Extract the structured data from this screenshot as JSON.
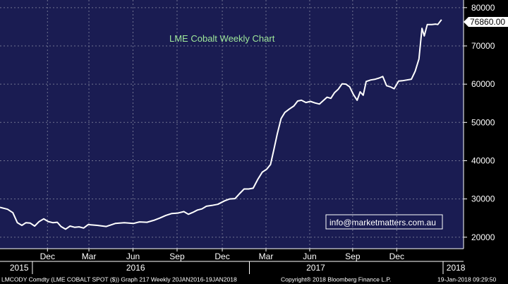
{
  "chart_data": {
    "type": "line",
    "title": "LME Cobalt Weekly Chart",
    "ylim": [
      17000,
      82000
    ],
    "y_ticks": [
      20000,
      30000,
      40000,
      50000,
      60000,
      70000,
      80000
    ],
    "last_value_label": "76860.00",
    "x_month_ticks": [
      {
        "label": "Dec",
        "t": 0.126
      },
      {
        "label": "Mar",
        "t": 0.236
      },
      {
        "label": "Jun",
        "t": 0.353
      },
      {
        "label": "Sep",
        "t": 0.47
      },
      {
        "label": "Dec",
        "t": 0.59
      },
      {
        "label": "Mar",
        "t": 0.706
      },
      {
        "label": "Jun",
        "t": 0.822
      },
      {
        "label": "Sep",
        "t": 0.936
      },
      {
        "label": "Dec",
        "t": 1.053
      }
    ],
    "year_labels": [
      {
        "label": "2015",
        "t": 0.051
      },
      {
        "label": "2016",
        "t": 0.36
      },
      {
        "label": "2017",
        "t": 0.838
      },
      {
        "label": "2018",
        "t": 1.21
      }
    ],
    "year_separators": [
      0.086,
      0.662,
      1.176
    ],
    "series": [
      {
        "color": "#ffffff",
        "points": [
          [
            0.0,
            27800
          ],
          [
            0.02,
            27300
          ],
          [
            0.034,
            26400
          ],
          [
            0.046,
            23800
          ],
          [
            0.058,
            23100
          ],
          [
            0.069,
            23800
          ],
          [
            0.08,
            23700
          ],
          [
            0.092,
            22900
          ],
          [
            0.104,
            24100
          ],
          [
            0.116,
            24800
          ],
          [
            0.128,
            24100
          ],
          [
            0.14,
            23800
          ],
          [
            0.152,
            23900
          ],
          [
            0.162,
            22800
          ],
          [
            0.174,
            22100
          ],
          [
            0.186,
            22900
          ],
          [
            0.198,
            22600
          ],
          [
            0.21,
            22700
          ],
          [
            0.222,
            22400
          ],
          [
            0.234,
            23300
          ],
          [
            0.258,
            23100
          ],
          [
            0.282,
            22800
          ],
          [
            0.306,
            23600
          ],
          [
            0.33,
            23800
          ],
          [
            0.354,
            23600
          ],
          [
            0.37,
            24000
          ],
          [
            0.39,
            23900
          ],
          [
            0.408,
            24400
          ],
          [
            0.424,
            25000
          ],
          [
            0.44,
            25700
          ],
          [
            0.456,
            26200
          ],
          [
            0.472,
            26300
          ],
          [
            0.488,
            26700
          ],
          [
            0.5,
            26000
          ],
          [
            0.512,
            26500
          ],
          [
            0.524,
            27100
          ],
          [
            0.536,
            27400
          ],
          [
            0.548,
            28100
          ],
          [
            0.562,
            28300
          ],
          [
            0.578,
            28600
          ],
          [
            0.596,
            29500
          ],
          [
            0.61,
            30000
          ],
          [
            0.624,
            30100
          ],
          [
            0.636,
            31400
          ],
          [
            0.648,
            32600
          ],
          [
            0.66,
            32600
          ],
          [
            0.672,
            32800
          ],
          [
            0.684,
            35100
          ],
          [
            0.696,
            37000
          ],
          [
            0.708,
            37800
          ],
          [
            0.718,
            39000
          ],
          [
            0.726,
            42500
          ],
          [
            0.736,
            47000
          ],
          [
            0.746,
            51000
          ],
          [
            0.756,
            52600
          ],
          [
            0.768,
            53500
          ],
          [
            0.78,
            54300
          ],
          [
            0.79,
            55600
          ],
          [
            0.8,
            55800
          ],
          [
            0.812,
            55200
          ],
          [
            0.824,
            55500
          ],
          [
            0.836,
            55100
          ],
          [
            0.848,
            54800
          ],
          [
            0.858,
            55700
          ],
          [
            0.868,
            56600
          ],
          [
            0.878,
            56300
          ],
          [
            0.888,
            57800
          ],
          [
            0.898,
            58700
          ],
          [
            0.908,
            60100
          ],
          [
            0.918,
            60000
          ],
          [
            0.928,
            59300
          ],
          [
            0.938,
            57300
          ],
          [
            0.948,
            55800
          ],
          [
            0.956,
            58000
          ],
          [
            0.964,
            57100
          ],
          [
            0.972,
            60700
          ],
          [
            0.984,
            61100
          ],
          [
            0.996,
            61300
          ],
          [
            1.006,
            61600
          ],
          [
            1.016,
            62000
          ],
          [
            1.026,
            59600
          ],
          [
            1.036,
            59300
          ],
          [
            1.046,
            58800
          ],
          [
            1.058,
            60800
          ],
          [
            1.068,
            60900
          ],
          [
            1.08,
            61100
          ],
          [
            1.092,
            61300
          ],
          [
            1.102,
            63400
          ],
          [
            1.112,
            66600
          ],
          [
            1.12,
            74600
          ],
          [
            1.126,
            72600
          ],
          [
            1.134,
            75600
          ],
          [
            1.146,
            75600
          ],
          [
            1.156,
            75700
          ],
          [
            1.162,
            75600
          ],
          [
            1.172,
            76860
          ]
        ]
      }
    ]
  },
  "watermark": "info@marketmatters.com.au",
  "footer": {
    "left": "LMCODY Comdty (LME COBALT  SPOT ($)) Graph 217  Weekly 20JAN2016-19JAN2018",
    "center": "Copyright® 2018 Bloomberg Finance L.P.",
    "right": "19-Jan-2018 09:29:50"
  },
  "colors": {
    "plot_background": "#1a1c52",
    "line": "#ffffff",
    "title": "#9fe89a",
    "watermark_border": "#ffffff",
    "value_tag_bg": "#ffffff"
  }
}
